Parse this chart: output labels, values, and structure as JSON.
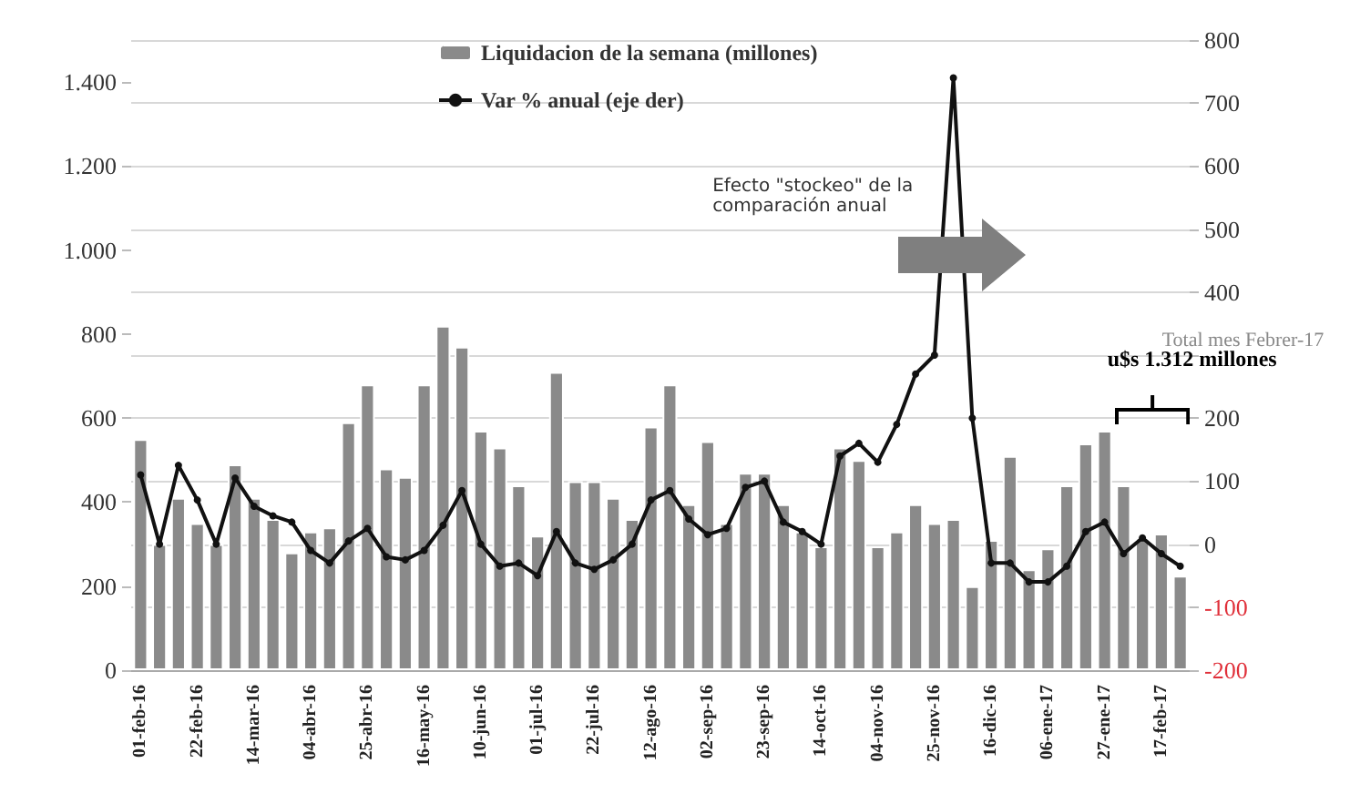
{
  "chart_data": {
    "type": "bar",
    "categories": [
      "01-feb-16",
      null,
      null,
      "22-feb-16",
      null,
      null,
      "14-mar-16",
      null,
      null,
      "04-abr-16",
      null,
      null,
      "25-abr-16",
      null,
      null,
      "16-may-16",
      null,
      null,
      "10-jun-16",
      null,
      null,
      "01-jul-16",
      null,
      null,
      "22-jul-16",
      null,
      null,
      "12-ago-16",
      null,
      null,
      "02-sep-16",
      null,
      null,
      "23-sep-16",
      null,
      null,
      "14-oct-16",
      null,
      null,
      "04-nov-16",
      null,
      null,
      "25-nov-16",
      null,
      null,
      "16-dic-16",
      null,
      null,
      "06-ene-17",
      null,
      null,
      "27-ene-17",
      null,
      null,
      "17-feb-17",
      null
    ],
    "series": [
      {
        "name": "Liquidacion de la semana (millones)",
        "color": "#8a8a8a",
        "values": [
          550,
          300,
          410,
          350,
          300,
          490,
          410,
          360,
          280,
          330,
          340,
          590,
          680,
          480,
          460,
          680,
          820,
          770,
          570,
          530,
          440,
          320,
          710,
          450,
          450,
          410,
          360,
          580,
          680,
          395,
          545,
          350,
          470,
          470,
          395,
          330,
          295,
          530,
          500,
          295,
          330,
          395,
          350,
          360,
          200,
          310,
          510,
          240,
          290,
          440,
          540,
          570,
          440,
          315,
          325,
          225
        ]
      },
      {
        "name": "Var % anual (eje der)",
        "type": "line",
        "axis": "y2",
        "color": "#111111",
        "values": [
          110,
          0,
          125,
          70,
          0,
          105,
          60,
          45,
          35,
          -10,
          -30,
          5,
          25,
          -20,
          -25,
          -10,
          30,
          85,
          0,
          -35,
          -30,
          -50,
          20,
          -30,
          -40,
          -25,
          0,
          70,
          85,
          40,
          15,
          25,
          90,
          100,
          35,
          20,
          0,
          140,
          160,
          130,
          190,
          270,
          300,
          740,
          200,
          -30,
          -30,
          -60,
          -60,
          -35,
          20,
          35,
          -15,
          10,
          -15,
          -35
        ]
      }
    ],
    "ylim": [
      0,
      1500
    ],
    "yticks": [
      0,
      {
        "value": 200,
        "label": "200"
      },
      {
        "value": 400,
        "label": "400"
      },
      {
        "value": 600,
        "label": "600"
      },
      {
        "value": 800,
        "label": "800"
      },
      {
        "value": 1000,
        "label": "1.000"
      },
      {
        "value": 1200,
        "label": "1.200"
      },
      {
        "value": 1400,
        "label": "1.400"
      }
    ],
    "y2lim": [
      -200,
      800
    ],
    "y2ticks": [
      -200,
      -100,
      0,
      100,
      200,
      {
        "value": 300,
        "label": null
      },
      400,
      500,
      600,
      700,
      800
    ],
    "grid": "y",
    "legend": "top",
    "marker": "circle",
    "annotations": [
      "Efecto \"stockeo\" de la comparación anual",
      "Total mes Febrer-17",
      "u$s 1.312 millones"
    ]
  }
}
